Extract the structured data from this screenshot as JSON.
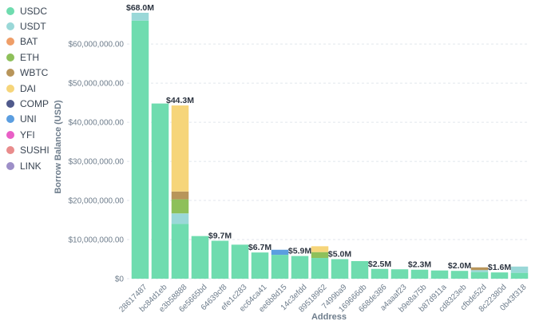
{
  "chart_data": {
    "type": "bar",
    "stacked": true,
    "xlabel": "Address",
    "ylabel": "Borrow Balance (USD)",
    "ylim": [
      0,
      68000000
    ],
    "yticks": [
      0,
      10000000,
      20000000,
      30000000,
      40000000,
      50000000,
      60000000
    ],
    "ytick_labels": [
      "$0",
      "$10,000,000.00",
      "$20,000,000.00",
      "$30,000,000.00",
      "$40,000,000.00",
      "$50,000,000.00",
      "$60,000,000.00"
    ],
    "grid": true,
    "legend_position": "left",
    "categories": [
      "28617487",
      "bc84d1eb",
      "e3b58888",
      "6e5665bd",
      "64639cf8",
      "efe1c283",
      "ec64ca41",
      "ee6b8d15",
      "14c3efdd",
      "89518962",
      "7499ba9",
      "169666db",
      "668de386",
      "a4aaaf23",
      "b9e8a75b",
      "b87d911a",
      "cd8323eb",
      "cfbde52d",
      "8c22380d",
      "0b43f318"
    ],
    "series": [
      {
        "name": "USDC",
        "color": "#6fdcaf",
        "values": [
          66000000,
          44800000,
          14000000,
          10900000,
          9700000,
          8700000,
          6700000,
          6100000,
          5800000,
          5300000,
          5000000,
          4500000,
          2500000,
          2400000,
          2300000,
          2100000,
          2000000,
          1700000,
          1600000,
          1500000
        ]
      },
      {
        "name": "USDT",
        "color": "#9ad8d8",
        "values": [
          2000000,
          0,
          2700000,
          0,
          0,
          0,
          0,
          0,
          0,
          0,
          0,
          0,
          0,
          0,
          0,
          0,
          0,
          500000,
          0,
          1600000
        ]
      },
      {
        "name": "BAT",
        "color": "#ef9e68",
        "values": [
          0,
          0,
          0,
          0,
          0,
          0,
          0,
          0,
          0,
          0,
          0,
          0,
          0,
          0,
          0,
          0,
          0,
          0,
          0,
          0
        ]
      },
      {
        "name": "ETH",
        "color": "#8ec05a",
        "values": [
          0,
          0,
          3600000,
          0,
          0,
          0,
          0,
          0,
          0,
          1500000,
          0,
          0,
          0,
          0,
          0,
          0,
          0,
          0,
          0,
          0
        ]
      },
      {
        "name": "WBTC",
        "color": "#b8955a",
        "values": [
          0,
          0,
          2000000,
          0,
          0,
          0,
          0,
          0,
          0,
          0,
          0,
          0,
          0,
          0,
          0,
          0,
          0,
          700000,
          0,
          0
        ]
      },
      {
        "name": "DAI",
        "color": "#f6d57a",
        "values": [
          0,
          0,
          22000000,
          0,
          0,
          0,
          0,
          0,
          0,
          1500000,
          0,
          0,
          0,
          0,
          0,
          0,
          0,
          0,
          0,
          0
        ]
      },
      {
        "name": "COMP",
        "color": "#505a8c",
        "values": [
          0,
          0,
          0,
          0,
          0,
          0,
          0,
          0,
          0,
          0,
          0,
          0,
          0,
          0,
          0,
          0,
          0,
          0,
          0,
          0
        ]
      },
      {
        "name": "UNI",
        "color": "#5b9ee0",
        "values": [
          0,
          0,
          0,
          0,
          0,
          0,
          0,
          1300000,
          0,
          0,
          0,
          0,
          0,
          0,
          0,
          0,
          0,
          0,
          0,
          0
        ]
      },
      {
        "name": "YFI",
        "color": "#e95fc6",
        "values": [
          0,
          0,
          0,
          0,
          0,
          0,
          0,
          0,
          0,
          0,
          0,
          0,
          0,
          0,
          0,
          0,
          0,
          0,
          0,
          0
        ]
      },
      {
        "name": "SUSHI",
        "color": "#e98c8c",
        "values": [
          0,
          0,
          0,
          0,
          0,
          0,
          0,
          0,
          0,
          0,
          0,
          0,
          0,
          0,
          0,
          0,
          0,
          0,
          0,
          0
        ]
      },
      {
        "name": "LINK",
        "color": "#9d8fc8",
        "values": [
          0,
          0,
          0,
          0,
          0,
          0,
          0,
          0,
          0,
          0,
          0,
          0,
          0,
          0,
          0,
          0,
          0,
          0,
          0,
          0
        ]
      }
    ],
    "bar_labels": [
      {
        "index": 0,
        "text": "$68.0M"
      },
      {
        "index": 2,
        "text": "$44.3M"
      },
      {
        "index": 4,
        "text": "$9.7M"
      },
      {
        "index": 6,
        "text": "$6.7M"
      },
      {
        "index": 8,
        "text": "$5.9M"
      },
      {
        "index": 10,
        "text": "$5.0M"
      },
      {
        "index": 12,
        "text": "$2.5M"
      },
      {
        "index": 14,
        "text": "$2.3M"
      },
      {
        "index": 16,
        "text": "$2.0M"
      },
      {
        "index": 18,
        "text": "$1.6M"
      }
    ]
  }
}
